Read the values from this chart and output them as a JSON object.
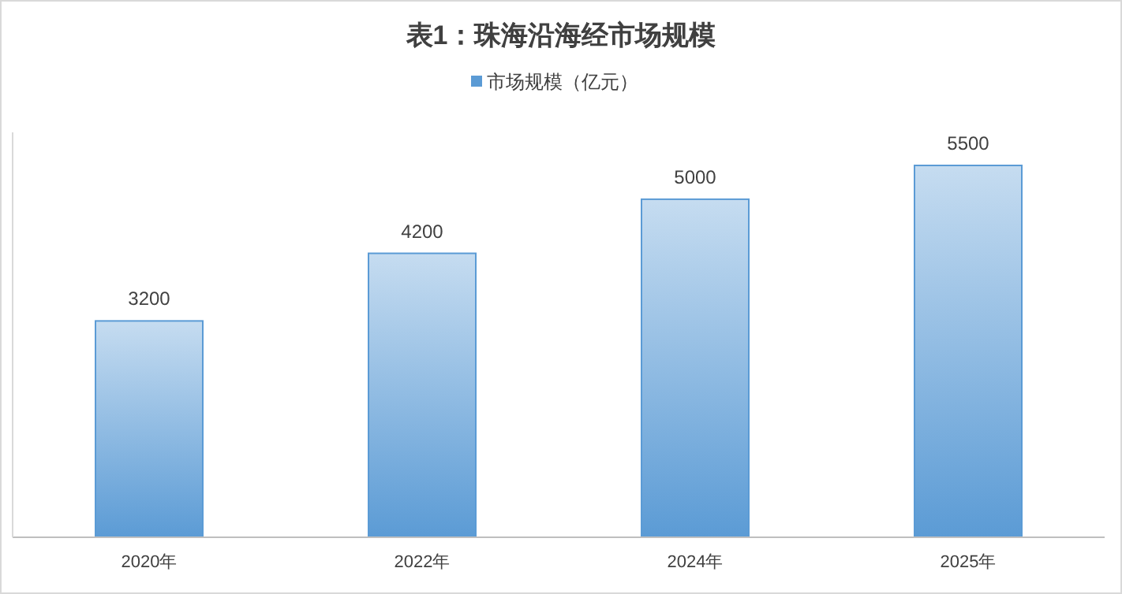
{
  "chart_data": {
    "type": "bar",
    "title": "表1：珠海沿海经市场规模",
    "categories": [
      "2020年",
      "2022年",
      "2024年",
      "2025年"
    ],
    "series": [
      {
        "name": "市场规模（亿元）",
        "color": "#5b9bd5",
        "values": [
          3200,
          4200,
          5000,
          5500
        ]
      }
    ],
    "data_labels": true,
    "legend": "top",
    "grid": false
  }
}
